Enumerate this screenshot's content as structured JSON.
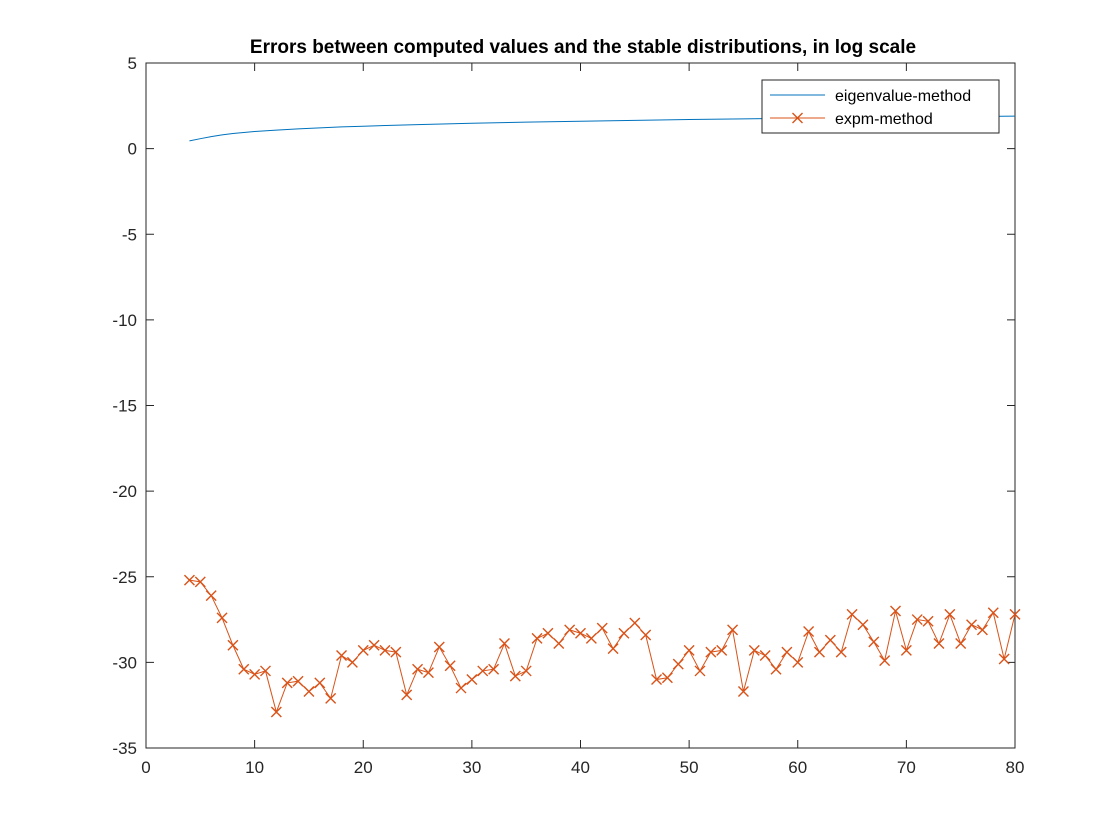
{
  "chart_data": {
    "type": "line",
    "title": "Errors between computed values and the stable distributions, in log scale",
    "xlabel": "",
    "ylabel": "",
    "xlim": [
      0,
      80
    ],
    "ylim": [
      -35,
      5
    ],
    "xticks": [
      0,
      10,
      20,
      30,
      40,
      50,
      60,
      70,
      80
    ],
    "yticks": [
      5,
      0,
      -5,
      -10,
      -15,
      -20,
      -25,
      -30,
      -35
    ],
    "grid": false,
    "legend_position": "top-right",
    "series": [
      {
        "name": "eigenvalue-method",
        "color": "#0072BD",
        "marker": "none",
        "x": [
          4,
          5,
          6,
          7,
          8,
          10,
          12,
          14,
          16,
          18,
          20,
          25,
          30,
          35,
          40,
          45,
          50,
          55,
          60,
          65,
          70,
          75,
          80
        ],
        "values": [
          0.45,
          0.58,
          0.7,
          0.8,
          0.88,
          1.0,
          1.08,
          1.15,
          1.21,
          1.27,
          1.31,
          1.4,
          1.48,
          1.55,
          1.6,
          1.65,
          1.7,
          1.74,
          1.77,
          1.8,
          1.84,
          1.87,
          1.9
        ]
      },
      {
        "name": "expm-method",
        "color": "#D95319",
        "marker": "x",
        "x": [
          4,
          5,
          6,
          7,
          8,
          9,
          10,
          11,
          12,
          13,
          14,
          15,
          16,
          17,
          18,
          19,
          20,
          21,
          22,
          23,
          24,
          25,
          26,
          27,
          28,
          29,
          30,
          31,
          32,
          33,
          34,
          35,
          36,
          37,
          38,
          39,
          40,
          41,
          42,
          43,
          44,
          45,
          46,
          47,
          48,
          49,
          50,
          51,
          52,
          53,
          54,
          55,
          56,
          57,
          58,
          59,
          60,
          61,
          62,
          63,
          64,
          65,
          66,
          67,
          68,
          69,
          70,
          71,
          72,
          73,
          74,
          75,
          76,
          77,
          78,
          79,
          80
        ],
        "values": [
          -25.2,
          -25.3,
          -26.1,
          -27.4,
          -29.0,
          -30.4,
          -30.7,
          -30.5,
          -32.9,
          -31.2,
          -31.1,
          -31.7,
          -31.2,
          -32.1,
          -29.6,
          -30.0,
          -29.3,
          -29.0,
          -29.3,
          -29.4,
          -31.9,
          -30.4,
          -30.6,
          -29.1,
          -30.2,
          -31.5,
          -31.0,
          -30.5,
          -30.4,
          -28.9,
          -30.8,
          -30.5,
          -28.6,
          -28.3,
          -28.9,
          -28.1,
          -28.3,
          -28.6,
          -28.0,
          -29.2,
          -28.3,
          -27.7,
          -28.4,
          -31.0,
          -30.9,
          -30.1,
          -29.3,
          -30.5,
          -29.4,
          -29.3,
          -28.1,
          -31.7,
          -29.3,
          -29.6,
          -30.4,
          -29.4,
          -30.0,
          -28.2,
          -29.4,
          -28.7,
          -29.4,
          -27.2,
          -27.8,
          -28.8,
          -29.9,
          -27.0,
          -29.3,
          -27.5,
          -27.6,
          -28.9,
          -27.2,
          -28.9,
          -27.8,
          -28.1,
          -27.1,
          -29.8,
          -27.2
        ]
      }
    ]
  }
}
